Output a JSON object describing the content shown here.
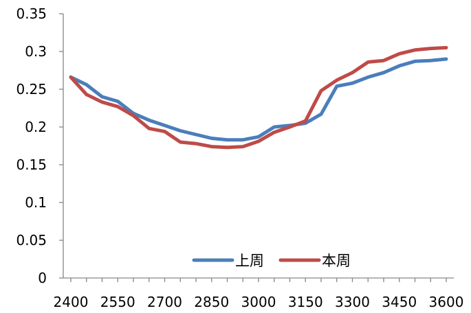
{
  "chart_data": {
    "type": "line",
    "title": "",
    "xlabel": "",
    "ylabel": "",
    "x": [
      2400,
      2450,
      2500,
      2550,
      2600,
      2650,
      2700,
      2750,
      2800,
      2850,
      2900,
      2950,
      3000,
      3050,
      3100,
      3150,
      3200,
      3250,
      3300,
      3350,
      3400,
      3450,
      3500,
      3550,
      3600
    ],
    "xticks": [
      2400,
      2550,
      2700,
      2850,
      3000,
      3150,
      3300,
      3450,
      3600
    ],
    "xlim": [
      2400,
      3600
    ],
    "ylim": [
      0,
      0.35
    ],
    "yticks": [
      "0",
      "0.05",
      "0.1",
      "0.15",
      "0.2",
      "0.25",
      "0.3",
      "0.35"
    ],
    "grid": false,
    "legend_position": "bottom-right",
    "series": [
      {
        "name": "上周",
        "color": "#4a7ebb",
        "values": [
          0.266,
          0.256,
          0.24,
          0.234,
          0.218,
          0.209,
          0.202,
          0.195,
          0.19,
          0.185,
          0.183,
          0.183,
          0.187,
          0.2,
          0.202,
          0.205,
          0.217,
          0.254,
          0.258,
          0.266,
          0.272,
          0.281,
          0.287,
          0.288,
          0.29
        ]
      },
      {
        "name": "本周",
        "color": "#be4b48",
        "values": [
          0.266,
          0.243,
          0.233,
          0.227,
          0.215,
          0.198,
          0.194,
          0.18,
          0.178,
          0.174,
          0.173,
          0.174,
          0.181,
          0.193,
          0.2,
          0.208,
          0.248,
          0.262,
          0.272,
          0.286,
          0.288,
          0.297,
          0.302,
          0.304,
          0.305
        ]
      }
    ]
  }
}
